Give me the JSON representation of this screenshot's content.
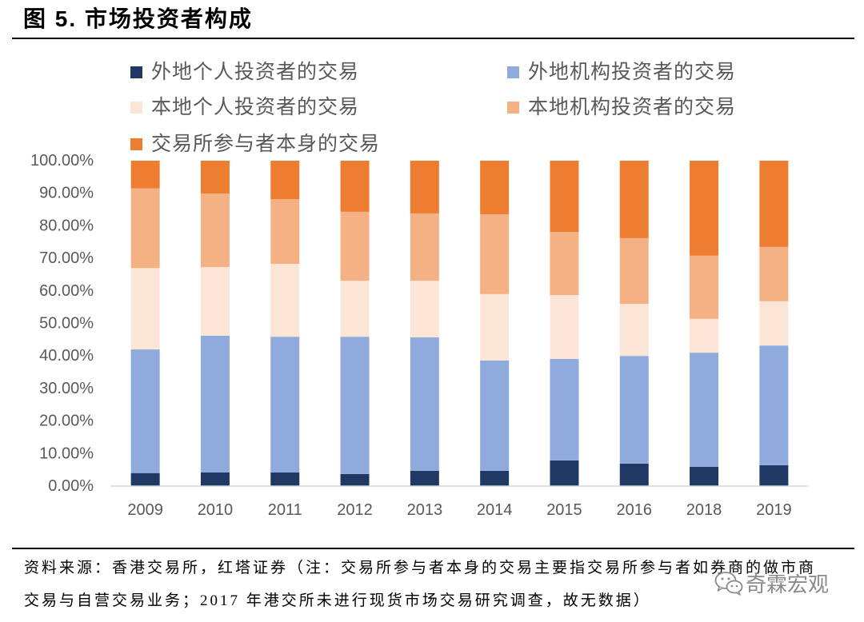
{
  "title": "图 5. 市场投资者构成",
  "chart_data": {
    "type": "bar",
    "stacked": true,
    "legend": "top",
    "grid": false,
    "categories": [
      "2009",
      "2010",
      "2011",
      "2012",
      "2013",
      "2014",
      "2015",
      "2016",
      "2018",
      "2019"
    ],
    "series": [
      {
        "name": "外地个人投资者的交易",
        "color": "#1f3864",
        "values": [
          4.0,
          4.2,
          4.2,
          3.7,
          4.7,
          4.7,
          7.9,
          6.9,
          5.9,
          6.4
        ]
      },
      {
        "name": "外地机构投资者的交易",
        "color": "#8faadc",
        "values": [
          38.0,
          42.0,
          41.7,
          42.2,
          41.0,
          33.9,
          31.2,
          33.1,
          35.1,
          36.8
        ]
      },
      {
        "name": "本地个人投资者的交易",
        "color": "#fbe5d6",
        "values": [
          25.0,
          21.1,
          22.4,
          17.2,
          17.4,
          20.4,
          19.6,
          16.0,
          10.4,
          13.6
        ]
      },
      {
        "name": "本地机构投资者的交易",
        "color": "#f4b183",
        "values": [
          24.5,
          22.6,
          19.9,
          21.2,
          20.7,
          24.5,
          19.4,
          20.2,
          19.4,
          16.7
        ]
      },
      {
        "name": "交易所参与者本身的交易",
        "color": "#ed7d31",
        "values": [
          8.5,
          10.1,
          11.8,
          15.7,
          16.2,
          16.5,
          21.9,
          23.8,
          29.2,
          26.5
        ]
      }
    ],
    "ylim": [
      0,
      100
    ],
    "y_tick_labels": [
      "0.00%",
      "10.00%",
      "20.00%",
      "30.00%",
      "40.00%",
      "50.00%",
      "60.00%",
      "70.00%",
      "80.00%",
      "90.00%",
      "100.00%"
    ]
  },
  "source": {
    "lines": [
      "资料来源：香港交易所，红塔证券（注：交易所参与者本身的交易主要指交易所参与者如券商的做市商",
      "交易与自营交易业务；2017 年港交所未进行现货市场交易研究调查，故无数据）"
    ]
  },
  "watermark": {
    "icon": "wechat-icon",
    "text": "奇霖宏观"
  }
}
